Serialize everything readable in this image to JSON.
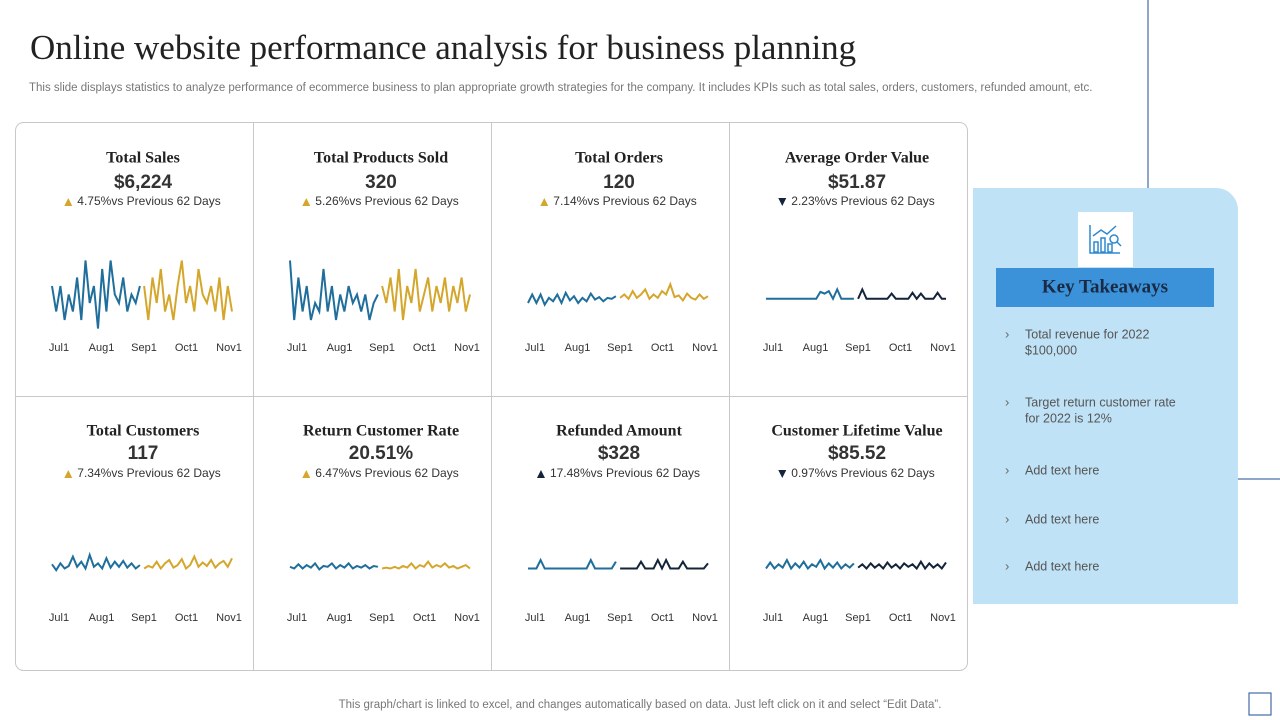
{
  "header": {
    "title": "Online website performance analysis for business planning",
    "subtitle": "This slide displays statistics to analyze performance of ecommerce business to plan appropriate growth strategies for the company. It includes KPIs such as total sales, orders, customers, refunded amount, etc."
  },
  "months": [
    "Jul1",
    "Aug1",
    "Sep1",
    "Oct1",
    "Nov1"
  ],
  "comparison_text": "vs Previous 62 Days",
  "cards": [
    {
      "title": "Total Sales",
      "value": "$6,224",
      "change": "4.75%",
      "trend": "up",
      "arrow_color": "#d4a72c",
      "spark": {
        "ylim": [
          0,
          10
        ],
        "series": [
          {
            "color": "#1f6e9c",
            "values": [
              6,
              3,
              6,
              2,
              5,
              3,
              7,
              2,
              9,
              4,
              6,
              1,
              8,
              3,
              9,
              5,
              4,
              7,
              3,
              5,
              4,
              6
            ]
          },
          {
            "color": "#d4a72c",
            "values": [
              6,
              2,
              7,
              4,
              8,
              3,
              5,
              2,
              6,
              9,
              4,
              6,
              3,
              8,
              5,
              4,
              6,
              3,
              7,
              2,
              6,
              3
            ]
          }
        ]
      }
    },
    {
      "title": "Total Products Sold",
      "value": "320",
      "change": "5.26%",
      "trend": "up",
      "arrow_color": "#d4a72c",
      "spark": {
        "ylim": [
          0,
          10
        ],
        "series": [
          {
            "color": "#1f6e9c",
            "values": [
              9,
              2,
              7,
              3,
              6,
              2,
              4,
              3,
              8,
              3,
              6,
              2,
              5,
              3,
              6,
              4,
              5,
              3,
              5,
              2,
              4,
              5
            ]
          },
          {
            "color": "#d4a72c",
            "values": [
              6,
              4,
              7,
              3,
              8,
              2,
              6,
              4,
              8,
              3,
              5,
              7,
              3,
              6,
              4,
              7,
              3,
              6,
              4,
              7,
              3,
              5
            ]
          }
        ]
      }
    },
    {
      "title": "Total Orders",
      "value": "120",
      "change": "7.14%",
      "trend": "up",
      "arrow_color": "#d4a72c",
      "spark": {
        "ylim": [
          0,
          10
        ],
        "series": [
          {
            "color": "#1f6e9c",
            "values": [
              4,
              5,
              4,
              5,
              3.8,
              4.6,
              4.2,
              5,
              4,
              5.2,
              4.3,
              4.8,
              4,
              4.6,
              4.2,
              5.1,
              4.4,
              4.7,
              4.2,
              4.6,
              4.5,
              4.8
            ]
          },
          {
            "color": "#d4a72c",
            "values": [
              4.6,
              5,
              4.5,
              5.4,
              4.6,
              5,
              5.6,
              4.5,
              5,
              4.6,
              5.4,
              5,
              6.2,
              4.7,
              4.9,
              4.3,
              5.1,
              4.6,
              4.4,
              5,
              4.5,
              4.8
            ]
          }
        ]
      }
    },
    {
      "title": "Average Order Value",
      "value": "$51.87",
      "change": "2.23%",
      "trend": "down",
      "arrow_color": "#14243a",
      "spark": {
        "ylim": [
          0,
          10
        ],
        "series": [
          {
            "color": "#1f6e9c",
            "values": [
              4.5,
              4.5,
              4.5,
              4.5,
              4.5,
              4.5,
              4.5,
              4.5,
              4.5,
              4.5,
              4.5,
              4.5,
              4.5,
              5.3,
              5.1,
              5.4,
              4.5,
              5.6,
              4.5,
              4.5,
              4.5,
              4.5
            ]
          },
          {
            "color": "#14243a",
            "values": [
              4.5,
              5.6,
              4.5,
              4.5,
              4.5,
              4.5,
              4.5,
              4.5,
              5.1,
              4.5,
              4.5,
              4.5,
              4.5,
              5.2,
              4.5,
              5.1,
              4.5,
              4.5,
              4.5,
              5.2,
              4.5,
              4.5
            ]
          }
        ]
      }
    },
    {
      "title": "Total Customers",
      "value": "117",
      "change": "7.34%",
      "trend": "up",
      "arrow_color": "#d4a72c",
      "spark": {
        "ylim": [
          0,
          10
        ],
        "series": [
          {
            "color": "#1f6e9c",
            "values": [
              5.5,
              4.8,
              5.6,
              5,
              5.3,
              6.4,
              5.2,
              5.8,
              5,
              6.6,
              5.2,
              5.6,
              5,
              6.2,
              5.1,
              5.8,
              5.2,
              5.9,
              5.1,
              5.6,
              5,
              5.4
            ]
          },
          {
            "color": "#d4a72c",
            "values": [
              5,
              5.3,
              5.1,
              5.8,
              5,
              5.6,
              6,
              5.1,
              5.4,
              6.1,
              5,
              5.4,
              6.4,
              5.2,
              5.7,
              5.3,
              6,
              5.1,
              5.6,
              5.9,
              5.2,
              6.2
            ]
          }
        ]
      }
    },
    {
      "title": "Return Customer Rate",
      "value": "20.51%",
      "change": "6.47%",
      "trend": "up",
      "arrow_color": "#d4a72c",
      "spark": {
        "ylim": [
          0,
          10
        ],
        "series": [
          {
            "color": "#1f6e9c",
            "values": [
              5.2,
              5,
              5.5,
              5,
              5.4,
              5.1,
              5.6,
              4.9,
              5.3,
              5.2,
              5.6,
              5,
              5.4,
              5.1,
              5.6,
              5,
              5.3,
              5.1,
              5.4,
              5,
              5.3,
              5.2
            ]
          },
          {
            "color": "#d4a72c",
            "values": [
              5,
              5.1,
              5,
              5.2,
              5,
              5.3,
              5.1,
              5.6,
              5,
              5.4,
              5.2,
              5.8,
              5.1,
              5.4,
              5.2,
              5.6,
              5.1,
              5.3,
              5,
              5.2,
              5.4,
              5
            ]
          }
        ]
      }
    },
    {
      "title": "Refunded Amount",
      "value": "$328",
      "change": "17.48%",
      "trend": "up",
      "arrow_color": "#14243a",
      "spark": {
        "ylim": [
          0,
          10
        ],
        "series": [
          {
            "color": "#1f6e9c",
            "values": [
              5,
              5,
              5,
              6,
              5,
              5,
              5,
              5,
              5,
              5,
              5,
              5,
              5,
              5,
              5,
              6,
              5,
              5,
              5,
              5,
              5,
              5.8
            ]
          },
          {
            "color": "#14243a",
            "values": [
              5,
              5,
              5,
              5,
              5,
              5.8,
              5,
              5,
              5,
              6,
              5,
              6,
              5,
              5,
              5,
              5.8,
              5,
              5,
              5,
              5,
              5,
              5.6
            ]
          }
        ]
      }
    },
    {
      "title": "Customer Lifetime Value",
      "value": "$85.52",
      "change": "0.97%",
      "trend": "down",
      "arrow_color": "#14243a",
      "spark": {
        "ylim": [
          0,
          10
        ],
        "series": [
          {
            "color": "#1f6e9c",
            "values": [
              5,
              5.7,
              5,
              5.5,
              5.1,
              6,
              5,
              5.6,
              5.1,
              5.8,
              5,
              5.5,
              5.2,
              6,
              5,
              5.6,
              5.1,
              5.7,
              5,
              5.5,
              5.1,
              5.6
            ]
          },
          {
            "color": "#14243a",
            "values": [
              5.1,
              5.5,
              5,
              5.6,
              5.1,
              5.5,
              5,
              5.7,
              5.1,
              5.5,
              5,
              5.6,
              5.2,
              5.5,
              5,
              5.8,
              5,
              5.6,
              5.1,
              5.5,
              5,
              5.7
            ]
          }
        ]
      }
    }
  ],
  "takeaways": {
    "title": "Key Takeaways",
    "items": [
      [
        "Total revenue  for 2022",
        "$100,000"
      ],
      [
        "Target return customer rate",
        "for 2022 is 12%"
      ],
      [
        "Add text here"
      ],
      [
        "Add text here"
      ],
      [
        "Add text here"
      ]
    ]
  },
  "footer": "This graph/chart is linked to excel,  and changes automatically based on data. Just left click on it and select “Edit Data”."
}
